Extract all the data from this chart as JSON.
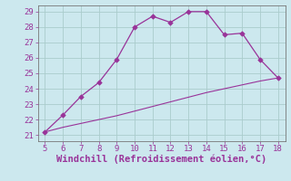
{
  "xlabel": "Windchill (Refroidissement éolien,°C)",
  "line1_x": [
    5,
    6,
    7,
    8,
    9,
    10,
    11,
    12,
    13,
    14,
    15,
    16,
    17,
    18
  ],
  "line1_y": [
    21.2,
    22.3,
    23.5,
    24.4,
    25.9,
    28.0,
    28.7,
    28.3,
    29.0,
    29.0,
    27.5,
    27.6,
    25.9,
    24.7
  ],
  "line2_x": [
    5,
    6,
    7,
    8,
    9,
    10,
    11,
    12,
    13,
    14,
    15,
    16,
    17,
    18
  ],
  "line2_y": [
    21.2,
    21.5,
    21.75,
    22.0,
    22.25,
    22.55,
    22.85,
    23.15,
    23.45,
    23.75,
    24.0,
    24.25,
    24.5,
    24.7
  ],
  "line_color": "#993399",
  "bg_color": "#cce8ee",
  "grid_color": "#aacccc",
  "spine_color": "#777777",
  "xlim": [
    4.6,
    18.4
  ],
  "ylim": [
    20.6,
    29.4
  ],
  "xticks": [
    5,
    6,
    7,
    8,
    9,
    10,
    11,
    12,
    13,
    14,
    15,
    16,
    17,
    18
  ],
  "yticks": [
    21,
    22,
    23,
    24,
    25,
    26,
    27,
    28,
    29
  ],
  "xlabel_fontsize": 7.5,
  "tick_fontsize": 6.5
}
